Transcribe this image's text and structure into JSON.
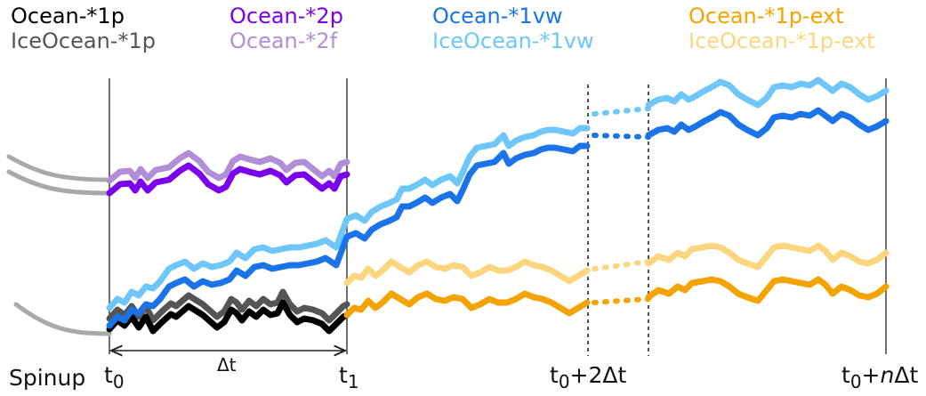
{
  "legend": {
    "ocean_1p": {
      "label": "Ocean-*1p",
      "color": "#000000"
    },
    "iceocean_1p": {
      "label": "IceOcean-*1p",
      "color": "#555555"
    },
    "ocean_2p": {
      "label": "Ocean-*2p",
      "color": "#7a00ee"
    },
    "ocean_2f": {
      "label": "Ocean-*2f",
      "color": "#b08fd8"
    },
    "ocean_1vw": {
      "label": "Ocean-*1vw",
      "color": "#1a73e8"
    },
    "iceocean_1vw": {
      "label": "IceOcean-*1vw",
      "color": "#6ec6fa"
    },
    "ocean_1p_ext": {
      "label": "Ocean-*1p-ext",
      "color": "#f5a300"
    },
    "iceocean_1p_ext": {
      "label": "IceOcean-*1p-ext",
      "color": "#fcd67e"
    }
  },
  "spinup_color": "#a9a9a9",
  "axis": {
    "spinup": "Spinup",
    "t0_main": "t",
    "t0_sub": "0",
    "t1_main": "t",
    "t1_sub": "1",
    "t2_main": "t",
    "t2_sub": "0",
    "t2_suffix": "+2Δt",
    "tn_main": "t",
    "tn_sub": "0",
    "tn_plus": "+",
    "tn_n": "n",
    "tn_suffix": "Δt",
    "delta_t": "Δt"
  }
}
